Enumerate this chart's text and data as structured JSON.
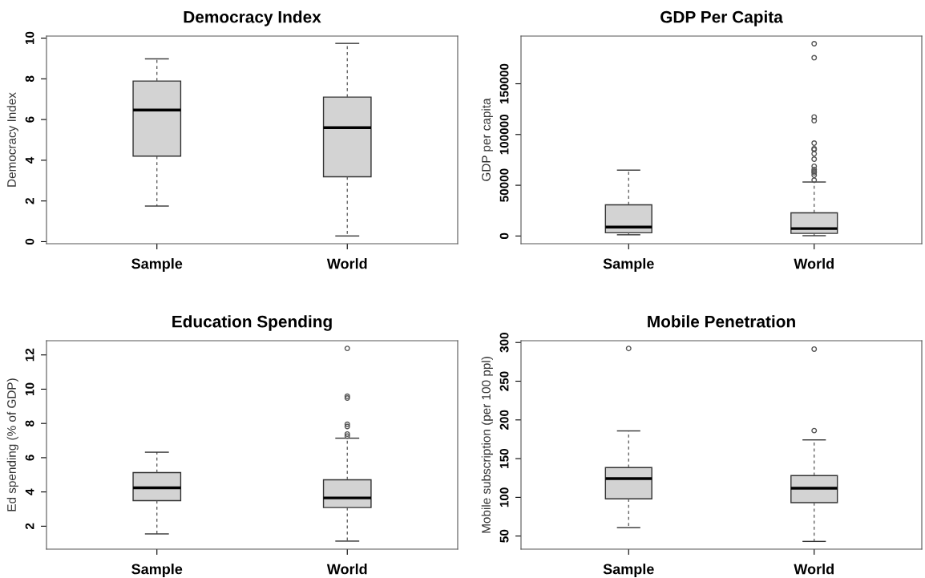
{
  "chart_data": [
    {
      "type": "box",
      "title": "Democracy Index",
      "ylabel": "Democracy Index",
      "categories": [
        "Sample",
        "World"
      ],
      "ylim": [
        -0.1,
        10.1
      ],
      "yticks": [
        0,
        2,
        4,
        6,
        8,
        10
      ],
      "boxes": [
        {
          "low": 1.75,
          "q1": 4.2,
          "median": 6.47,
          "q3": 7.89,
          "high": 8.98
        },
        {
          "low": 0.28,
          "q1": 3.19,
          "median": 5.6,
          "q3": 7.1,
          "high": 9.74
        }
      ]
    },
    {
      "type": "box",
      "title": "GDP Per Capita",
      "ylabel": "GDP per capita",
      "categories": [
        "Sample",
        "World"
      ],
      "ylim": [
        -7600,
        197000
      ],
      "yticks": [
        0,
        50000,
        100000,
        150000
      ],
      "boxes": [
        {
          "low": 1200,
          "q1": 3200,
          "median": 8800,
          "q3": 30700,
          "high": 64900
        },
        {
          "low": 300,
          "q1": 2600,
          "median": 7300,
          "q3": 22800,
          "high": 53200,
          "outliers": [
            189500,
            175700,
            117300,
            113700,
            91500,
            86000,
            85100,
            81000,
            75700,
            68700,
            65500,
            63700,
            62300,
            59900,
            55000
          ]
        }
      ]
    },
    {
      "type": "box",
      "title": "Education Spending",
      "ylabel": "Ed spending (% of GDP)",
      "categories": [
        "Sample",
        "World"
      ],
      "ylim": [
        0.66,
        12.83
      ],
      "yticks": [
        2,
        4,
        6,
        8,
        10,
        12
      ],
      "boxes": [
        {
          "low": 1.55,
          "q1": 3.49,
          "median": 4.24,
          "q3": 5.13,
          "high": 6.32
        },
        {
          "low": 1.13,
          "q1": 3.09,
          "median": 3.65,
          "q3": 4.71,
          "high": 7.14,
          "outliers": [
            12.38,
            9.59,
            9.48,
            7.95,
            7.82,
            7.38,
            7.26
          ]
        }
      ]
    },
    {
      "type": "box",
      "title": "Mobile Penetration",
      "ylabel": "Mobile subscription (per 100 ppl)",
      "categories": [
        "Sample",
        "World"
      ],
      "ylim": [
        33.1,
        302.3
      ],
      "yticks": [
        50,
        100,
        150,
        200,
        250,
        300
      ],
      "boxes": [
        {
          "low": 60.8,
          "q1": 98.1,
          "median": 124.2,
          "q3": 138.5,
          "high": 185.8,
          "outliers": [
            292.3
          ]
        },
        {
          "low": 43.1,
          "q1": 93.1,
          "median": 111.9,
          "q3": 128.1,
          "high": 174.2,
          "outliers": [
            291.5,
            186.2
          ]
        }
      ]
    }
  ]
}
